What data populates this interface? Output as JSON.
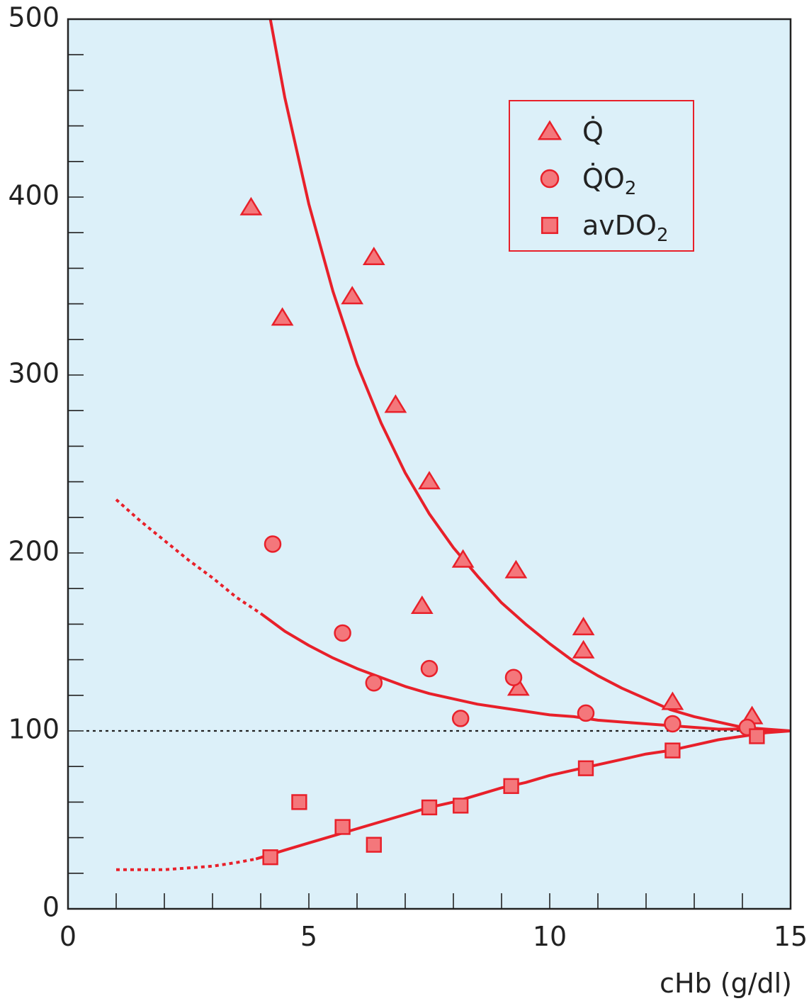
{
  "chart_data": {
    "type": "scatter",
    "title": "",
    "xlabel": "cHb (g/dl)",
    "ylabel": "",
    "xlim": [
      0,
      15
    ],
    "ylim": [
      0,
      500
    ],
    "x_ticks": [
      0,
      5,
      10,
      15
    ],
    "y_ticks": [
      0,
      100,
      200,
      300,
      400,
      500
    ],
    "x_tick_labels": [
      "0",
      "5",
      "10",
      "15"
    ],
    "y_tick_labels": [
      "0",
      "100",
      "200",
      "300",
      "400",
      "500"
    ],
    "grid": false,
    "background_color": "#dcf0f9",
    "series_color": "#e8202a",
    "marker_fill": "#f4777b",
    "reference_line": {
      "y": 100,
      "style": "dotted",
      "color": "#222222"
    },
    "legend": {
      "placement": "top-right",
      "entries": [
        {
          "label": "Q̇",
          "subscript": "",
          "marker": "triangle"
        },
        {
          "label": "Q̇O",
          "subscript": "2",
          "marker": "circle"
        },
        {
          "label": "avDO",
          "subscript": "2",
          "marker": "square"
        }
      ]
    },
    "series": [
      {
        "name": "Q̇",
        "marker": "triangle",
        "points": [
          [
            3.8,
            394
          ],
          [
            4.45,
            332
          ],
          [
            5.9,
            344
          ],
          [
            6.35,
            366
          ],
          [
            6.8,
            283
          ],
          [
            7.5,
            240
          ],
          [
            7.35,
            170
          ],
          [
            8.2,
            196
          ],
          [
            9.3,
            190
          ],
          [
            9.35,
            124
          ],
          [
            10.7,
            158
          ],
          [
            10.7,
            145
          ],
          [
            12.55,
            116
          ],
          [
            14.2,
            108
          ]
        ],
        "curve": [
          [
            4.2,
            500
          ],
          [
            4.5,
            456
          ],
          [
            5.0,
            396
          ],
          [
            5.5,
            347
          ],
          [
            6.0,
            306
          ],
          [
            6.5,
            273
          ],
          [
            7.0,
            245
          ],
          [
            7.5,
            222
          ],
          [
            8.0,
            203
          ],
          [
            8.5,
            187
          ],
          [
            9.0,
            172
          ],
          [
            9.5,
            160
          ],
          [
            10.0,
            149
          ],
          [
            10.5,
            139
          ],
          [
            11.0,
            131
          ],
          [
            11.5,
            124
          ],
          [
            12.0,
            118
          ],
          [
            12.5,
            112
          ],
          [
            13.0,
            108
          ],
          [
            13.5,
            105
          ],
          [
            14.0,
            102
          ],
          [
            14.5,
            101
          ],
          [
            15.0,
            100
          ]
        ]
      },
      {
        "name": "Q̇O2",
        "marker": "circle",
        "points": [
          [
            4.25,
            205
          ],
          [
            5.7,
            155
          ],
          [
            6.35,
            127
          ],
          [
            7.5,
            135
          ],
          [
            8.15,
            107
          ],
          [
            9.25,
            130
          ],
          [
            10.75,
            110
          ],
          [
            12.55,
            104
          ],
          [
            14.1,
            102
          ]
        ],
        "curve_dotted": [
          [
            1.0,
            230
          ],
          [
            1.5,
            218
          ],
          [
            2.0,
            207
          ],
          [
            2.5,
            196
          ],
          [
            3.0,
            186
          ],
          [
            3.5,
            175
          ],
          [
            4.0,
            166
          ]
        ],
        "curve": [
          [
            4.0,
            166
          ],
          [
            4.5,
            156
          ],
          [
            5.0,
            148
          ],
          [
            5.5,
            141
          ],
          [
            6.0,
            135
          ],
          [
            6.5,
            130
          ],
          [
            7.0,
            125
          ],
          [
            7.5,
            121
          ],
          [
            8.0,
            118
          ],
          [
            8.5,
            115
          ],
          [
            9.0,
            113
          ],
          [
            9.5,
            111
          ],
          [
            10.0,
            109
          ],
          [
            10.5,
            108
          ],
          [
            11.0,
            106
          ],
          [
            11.5,
            105
          ],
          [
            12.0,
            104
          ],
          [
            12.5,
            103
          ],
          [
            13.0,
            102
          ],
          [
            13.5,
            101
          ],
          [
            14.0,
            101
          ],
          [
            14.5,
            100
          ],
          [
            15.0,
            100
          ]
        ]
      },
      {
        "name": "avDO2",
        "marker": "square",
        "points": [
          [
            4.2,
            29
          ],
          [
            4.8,
            60
          ],
          [
            5.7,
            46
          ],
          [
            6.35,
            36
          ],
          [
            7.5,
            57
          ],
          [
            8.15,
            58
          ],
          [
            9.2,
            69
          ],
          [
            10.75,
            79
          ],
          [
            12.55,
            89
          ],
          [
            14.3,
            97
          ]
        ],
        "curve_dotted": [
          [
            1.0,
            22
          ],
          [
            1.5,
            22
          ],
          [
            2.0,
            22
          ],
          [
            2.5,
            23
          ],
          [
            3.0,
            24
          ],
          [
            3.5,
            26
          ],
          [
            3.9,
            28
          ]
        ],
        "curve": [
          [
            3.9,
            28
          ],
          [
            4.5,
            33
          ],
          [
            5.0,
            37
          ],
          [
            5.5,
            41
          ],
          [
            6.0,
            45
          ],
          [
            6.5,
            49
          ],
          [
            7.0,
            53
          ],
          [
            7.5,
            57
          ],
          [
            8.0,
            60
          ],
          [
            8.5,
            64
          ],
          [
            9.0,
            68
          ],
          [
            9.5,
            71
          ],
          [
            10.0,
            75
          ],
          [
            10.5,
            78
          ],
          [
            11.0,
            81
          ],
          [
            11.5,
            84
          ],
          [
            12.0,
            87
          ],
          [
            12.5,
            89
          ],
          [
            13.0,
            92
          ],
          [
            13.5,
            95
          ],
          [
            14.0,
            97
          ],
          [
            14.5,
            99
          ],
          [
            15.0,
            100
          ]
        ]
      }
    ]
  }
}
